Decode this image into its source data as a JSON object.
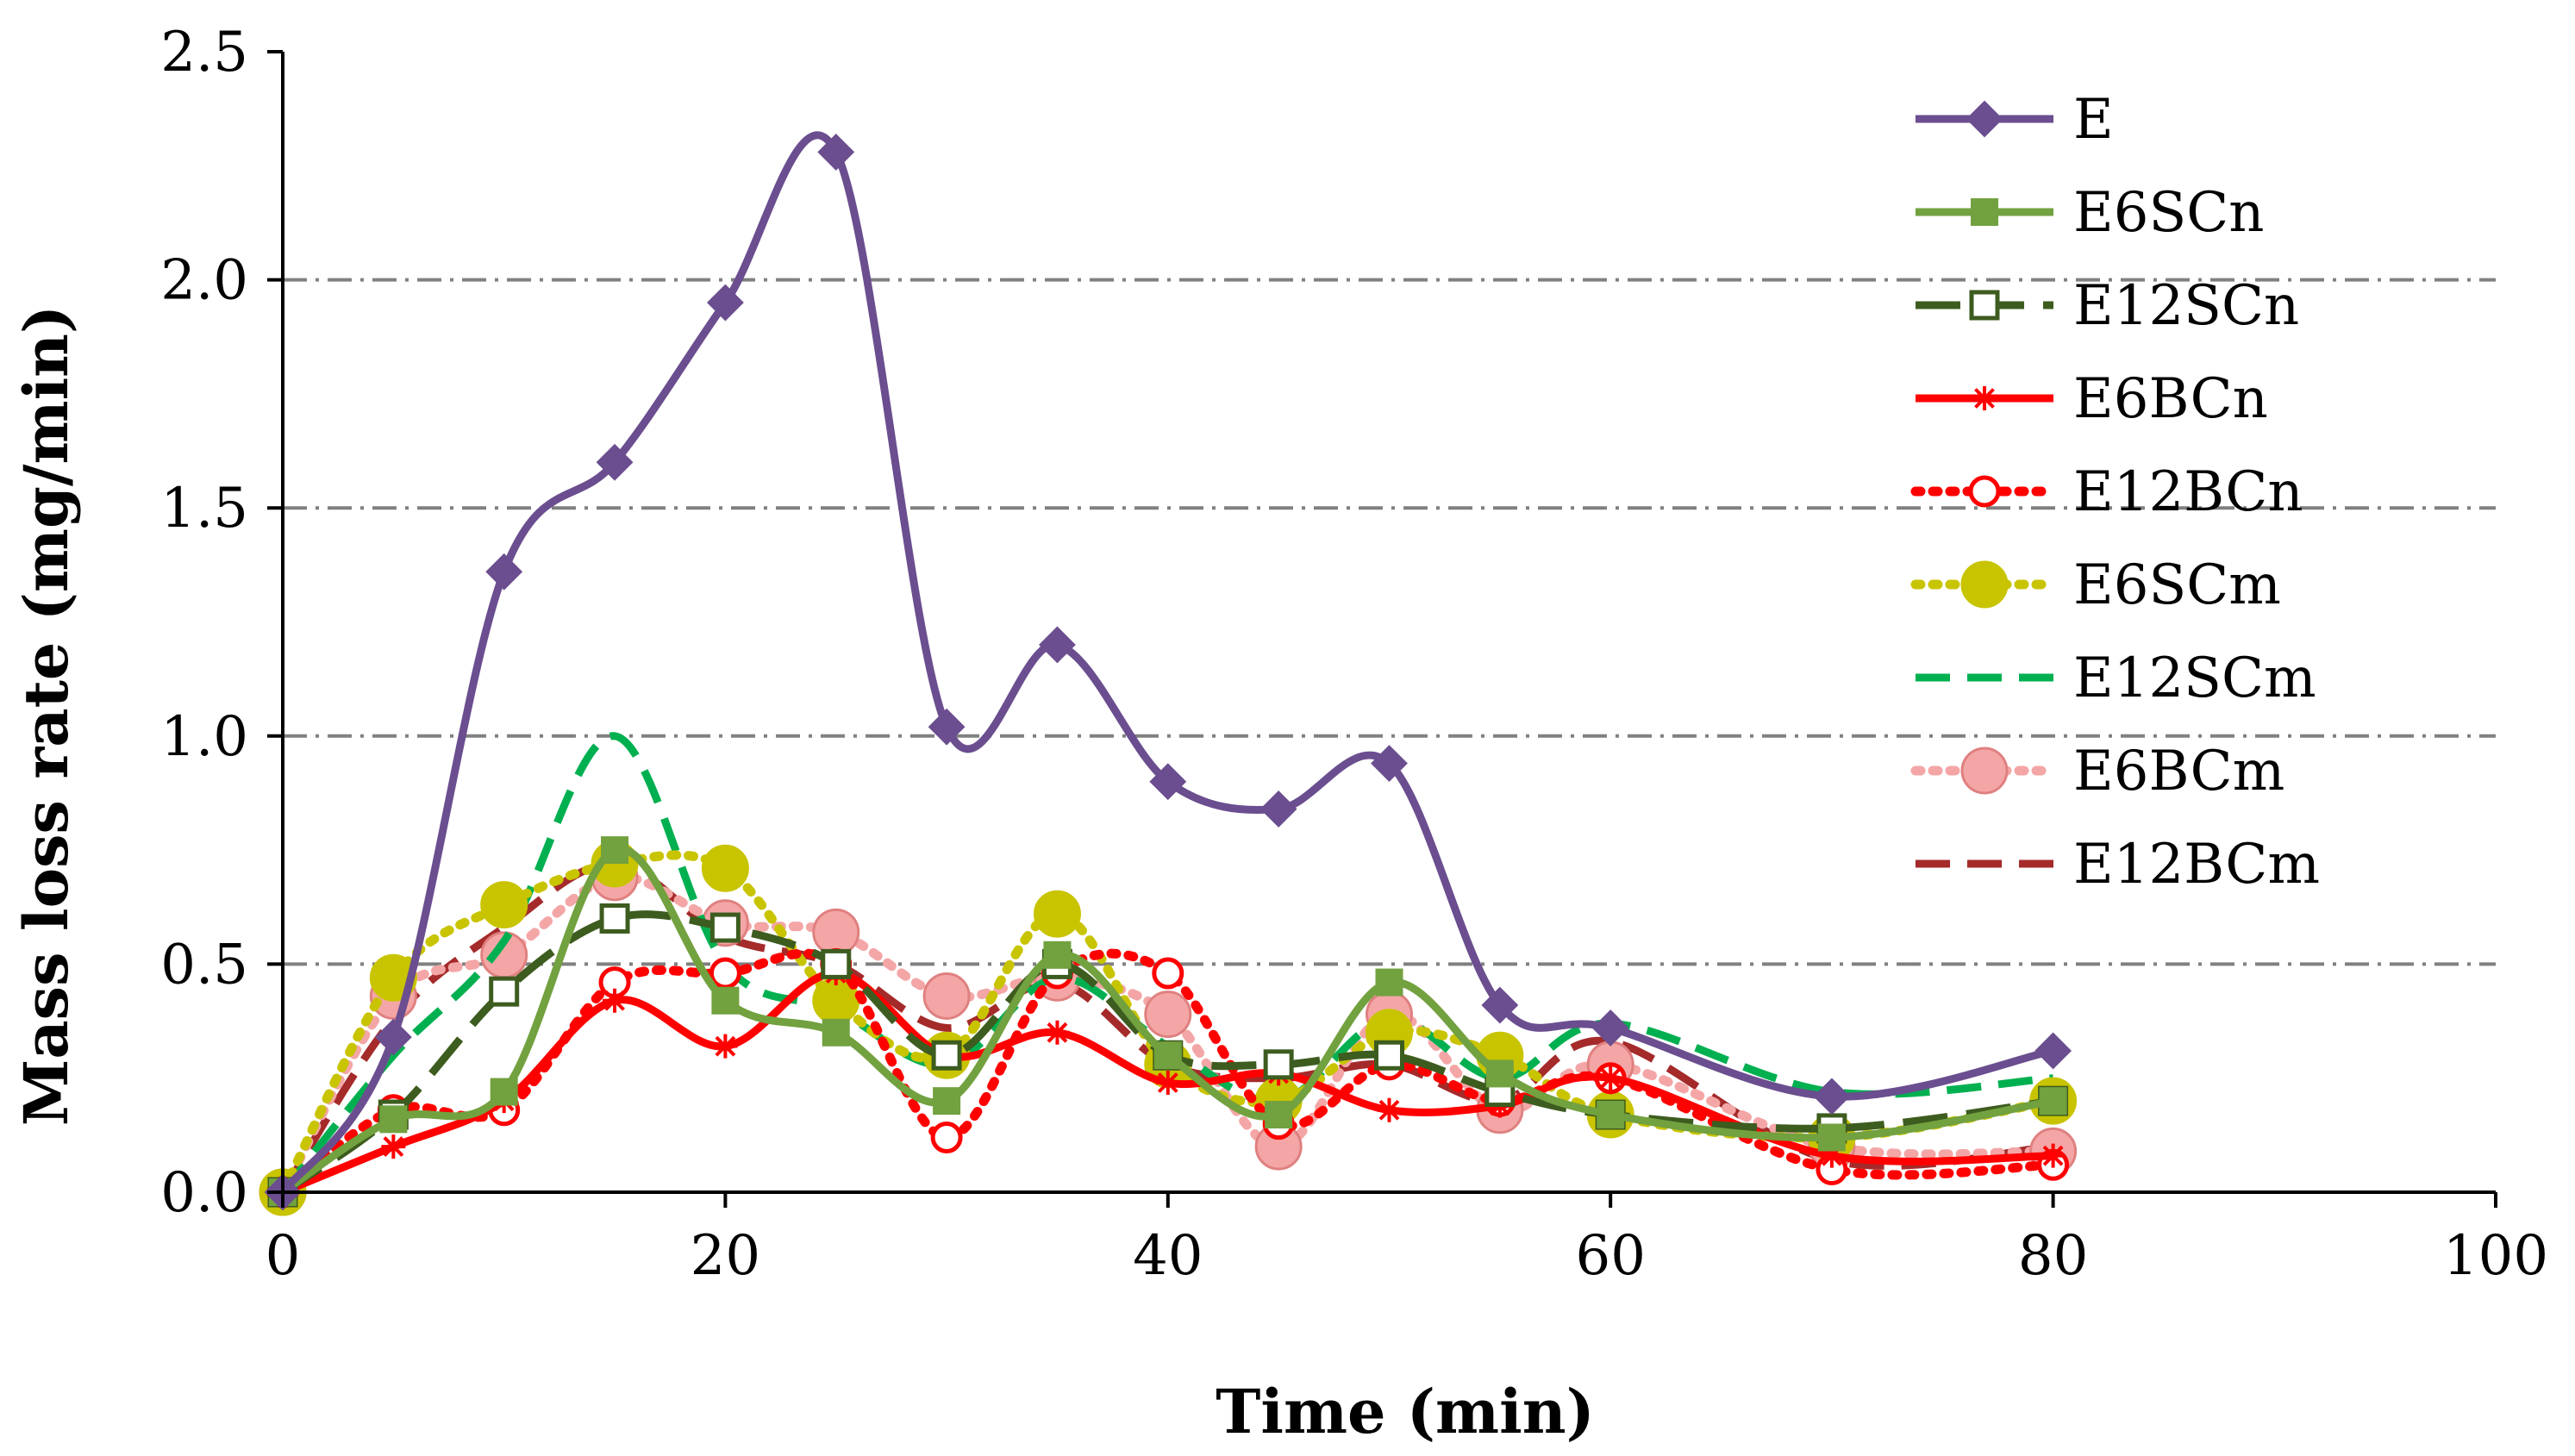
{
  "chart_data": {
    "type": "line",
    "title": "",
    "xlabel": "Time (min)",
    "ylabel": "Mass loss rate (mg/min)",
    "xlim": [
      0,
      100
    ],
    "ylim": [
      0,
      2.5
    ],
    "xticks": [
      0,
      20,
      40,
      60,
      80,
      100
    ],
    "yticks": [
      0,
      0.5,
      1.0,
      1.5,
      2.0,
      2.5
    ],
    "xtick_labels": [
      "0",
      "20",
      "40",
      "60",
      "80",
      "100"
    ],
    "ytick_labels": [
      "0.0",
      "0.5",
      "1.0",
      "1.5",
      "2.0",
      "2.5"
    ],
    "grid": "horizontal dash-dot",
    "legend_position": "top-right",
    "series": [
      {
        "name": "E",
        "color": "#6b4e8f",
        "dash": "solid",
        "marker": "diamond",
        "x": [
          0,
          5,
          10,
          15,
          20,
          25,
          30,
          35,
          40,
          45,
          50,
          55,
          60,
          70,
          80
        ],
        "y": [
          0,
          0.34,
          1.36,
          1.6,
          1.95,
          2.28,
          1.02,
          1.2,
          0.9,
          0.84,
          0.94,
          0.41,
          0.36,
          0.21,
          0.31
        ]
      },
      {
        "name": "E6SCn",
        "color": "#72a13f",
        "dash": "solid",
        "marker": "square",
        "x": [
          0,
          5,
          10,
          15,
          20,
          25,
          30,
          35,
          40,
          45,
          50,
          55,
          60,
          70,
          80
        ],
        "y": [
          0,
          0.16,
          0.22,
          0.75,
          0.42,
          0.35,
          0.2,
          0.52,
          0.3,
          0.17,
          0.46,
          0.26,
          0.17,
          0.12,
          0.2
        ]
      },
      {
        "name": "E12SCn",
        "color": "#3d5c1f",
        "dash": "longdash",
        "marker": "open-square",
        "x": [
          0,
          5,
          10,
          15,
          20,
          25,
          30,
          35,
          40,
          45,
          50,
          55,
          60,
          70,
          80
        ],
        "y": [
          0,
          0.17,
          0.44,
          0.6,
          0.58,
          0.5,
          0.3,
          0.5,
          0.3,
          0.28,
          0.3,
          0.22,
          0.17,
          0.14,
          0.2
        ]
      },
      {
        "name": "E6BCn",
        "color": "#ff0000",
        "dash": "solid",
        "marker": "star",
        "x": [
          0,
          5,
          10,
          15,
          20,
          25,
          30,
          35,
          40,
          45,
          50,
          55,
          60,
          70,
          80
        ],
        "y": [
          0,
          0.1,
          0.2,
          0.42,
          0.32,
          0.48,
          0.3,
          0.35,
          0.24,
          0.26,
          0.18,
          0.19,
          0.25,
          0.08,
          0.08
        ]
      },
      {
        "name": "E12BCn",
        "color": "#ff0000",
        "dash": "dotted",
        "marker": "open-circle",
        "x": [
          0,
          5,
          10,
          15,
          20,
          25,
          30,
          35,
          40,
          45,
          50,
          55,
          60,
          70,
          80
        ],
        "y": [
          0,
          0.18,
          0.18,
          0.46,
          0.48,
          0.5,
          0.12,
          0.48,
          0.48,
          0.15,
          0.28,
          0.2,
          0.25,
          0.05,
          0.06
        ]
      },
      {
        "name": "E6SCm",
        "color": "#c9c400",
        "dash": "dotted",
        "marker": "circle",
        "x": [
          0,
          5,
          10,
          15,
          20,
          25,
          30,
          35,
          40,
          45,
          50,
          55,
          60,
          70,
          80
        ],
        "y": [
          0,
          0.47,
          0.63,
          0.72,
          0.71,
          0.42,
          0.3,
          0.61,
          0.28,
          0.2,
          0.35,
          0.3,
          0.17,
          0.12,
          0.2
        ]
      },
      {
        "name": "E12SCm",
        "color": "#00b050",
        "dash": "dashed",
        "marker": "none",
        "x": [
          0,
          5,
          10,
          15,
          20,
          25,
          30,
          35,
          40,
          45,
          50,
          55,
          60,
          70,
          80
        ],
        "y": [
          0,
          0.3,
          0.55,
          1.0,
          0.5,
          0.4,
          0.28,
          0.47,
          0.32,
          0.2,
          0.38,
          0.25,
          0.37,
          0.22,
          0.25
        ]
      },
      {
        "name": "E6BCm",
        "color": "#f4a6a6",
        "dash": "dotted",
        "marker": "circle",
        "x": [
          0,
          5,
          10,
          15,
          20,
          25,
          30,
          35,
          40,
          45,
          50,
          55,
          60,
          70,
          80
        ],
        "y": [
          0,
          0.43,
          0.52,
          0.69,
          0.59,
          0.57,
          0.43,
          0.47,
          0.39,
          0.1,
          0.39,
          0.18,
          0.28,
          0.1,
          0.09
        ]
      },
      {
        "name": "E12BCm",
        "color": "#a52a2a",
        "dash": "dashed",
        "marker": "none",
        "x": [
          0,
          5,
          10,
          15,
          20,
          25,
          30,
          35,
          40,
          45,
          50,
          55,
          60,
          70,
          80
        ],
        "y": [
          0,
          0.38,
          0.58,
          0.72,
          0.56,
          0.5,
          0.36,
          0.46,
          0.28,
          0.25,
          0.28,
          0.2,
          0.33,
          0.07,
          0.1
        ]
      }
    ]
  }
}
